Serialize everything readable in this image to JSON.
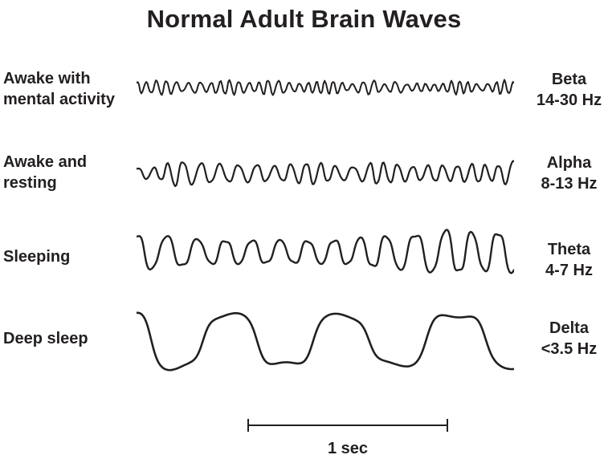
{
  "title": "Normal Adult Brain Waves",
  "colors": {
    "ink": "#231f20",
    "background": "#ffffff"
  },
  "rows": [
    {
      "state_line1": "Awake with",
      "state_line2": "mental activity",
      "band": "Beta",
      "freq_range": "14-30 Hz",
      "wave": {
        "name": "beta",
        "cycles": 40,
        "amplitude": 8,
        "sharpness": 0.7,
        "seed": 42,
        "phase": 0.0,
        "amp_base": 0.45,
        "amp_var": 0.8,
        "freq_var": 0.5
      }
    },
    {
      "state_line1": "Awake and",
      "state_line2": "resting",
      "band": "Alpha",
      "freq_range": "8-13 Hz",
      "wave": {
        "name": "alpha",
        "cycles": 24,
        "amplitude": 13,
        "sharpness": 0.8,
        "seed": 7,
        "phase": 0.1,
        "amp_base": 0.5,
        "amp_var": 0.7,
        "freq_var": 0.45
      }
    },
    {
      "state_line1": "Sleeping",
      "state_line2": "",
      "band": "Theta",
      "freq_range": "4-7 Hz",
      "wave": {
        "name": "theta",
        "cycles": 14,
        "amplitude": 24,
        "sharpness": 1.4,
        "seed": 13,
        "phase": 0.2,
        "amp_base": 0.55,
        "amp_var": 0.6,
        "freq_var": 0.4
      }
    },
    {
      "state_line1": "Deep sleep",
      "state_line2": "",
      "band": "Delta",
      "freq_range": "<3.5 Hz",
      "wave": {
        "name": "delta",
        "cycles": 3.3,
        "amplitude": 36,
        "sharpness": 2.2,
        "seed": 2,
        "phase": 0.35,
        "amp_base": 0.75,
        "amp_var": 0.3,
        "freq_var": 0.3
      }
    }
  ],
  "scale_bar": {
    "label": "1 sec"
  }
}
